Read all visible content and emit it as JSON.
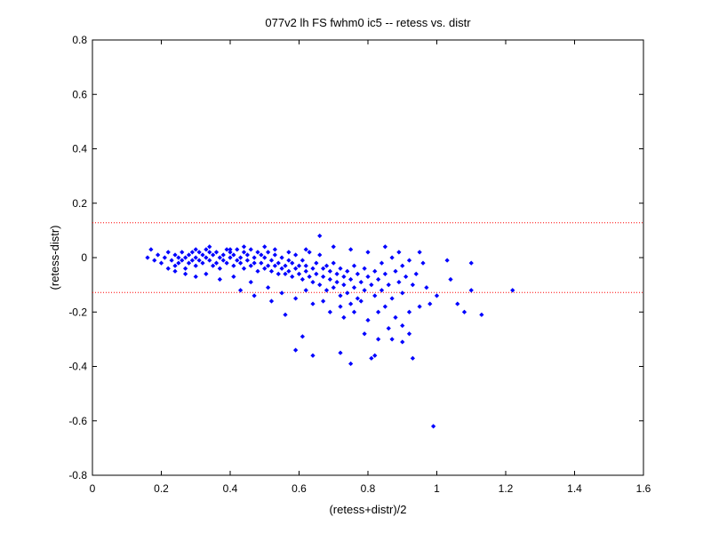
{
  "chart_data": {
    "type": "scatter",
    "title": "077v2 lh FS fwhm0 ic5 -- retess vs. distr",
    "xlabel": "(retess+distr)/2",
    "ylabel": "(retess-distr)",
    "xlim": [
      0,
      1.6
    ],
    "ylim": [
      -0.8,
      0.8
    ],
    "xticks": [
      0,
      0.2,
      0.4,
      0.6,
      0.8,
      1,
      1.2,
      1.4,
      1.6
    ],
    "yticks": [
      -0.8,
      -0.6,
      -0.4,
      -0.2,
      0,
      0.2,
      0.4,
      0.6,
      0.8
    ],
    "xtick_labels": [
      "0",
      "0.2",
      "0.4",
      "0.6",
      "0.8",
      "1",
      "1.2",
      "1.4",
      "1.6"
    ],
    "ytick_labels": [
      "-0.8",
      "-0.6",
      "-0.4",
      "-0.2",
      "0",
      "0.2",
      "0.4",
      "0.6",
      "0.8"
    ],
    "grid": false,
    "reference_lines": [
      {
        "y": 0.128,
        "style": "dotted",
        "color": "#ff0000"
      },
      {
        "y": -0.128,
        "style": "dotted",
        "color": "#ff0000"
      }
    ],
    "marker_color": "#0000ff",
    "series": [
      {
        "points": [
          [
            0.16,
            0.0
          ],
          [
            0.17,
            0.03
          ],
          [
            0.18,
            -0.01
          ],
          [
            0.19,
            0.01
          ],
          [
            0.2,
            -0.02
          ],
          [
            0.21,
            0.0
          ],
          [
            0.22,
            -0.04
          ],
          [
            0.22,
            0.02
          ],
          [
            0.23,
            -0.01
          ],
          [
            0.24,
            0.01
          ],
          [
            0.24,
            -0.03
          ],
          [
            0.25,
            0.0
          ],
          [
            0.25,
            -0.02
          ],
          [
            0.26,
            0.02
          ],
          [
            0.26,
            -0.01
          ],
          [
            0.27,
            0.0
          ],
          [
            0.27,
            -0.04
          ],
          [
            0.28,
            0.01
          ],
          [
            0.28,
            -0.02
          ],
          [
            0.29,
            0.02
          ],
          [
            0.29,
            -0.01
          ],
          [
            0.3,
            0.0
          ],
          [
            0.3,
            -0.03
          ],
          [
            0.31,
            0.02
          ],
          [
            0.31,
            -0.01
          ],
          [
            0.32,
            0.01
          ],
          [
            0.32,
            -0.02
          ],
          [
            0.33,
            0.03
          ],
          [
            0.33,
            0.0
          ],
          [
            0.34,
            -0.01
          ],
          [
            0.34,
            0.02
          ],
          [
            0.35,
            -0.03
          ],
          [
            0.35,
            0.01
          ],
          [
            0.36,
            -0.02
          ],
          [
            0.36,
            0.02
          ],
          [
            0.37,
            0.0
          ],
          [
            0.37,
            -0.04
          ],
          [
            0.38,
            0.01
          ],
          [
            0.38,
            -0.01
          ],
          [
            0.39,
            0.03
          ],
          [
            0.39,
            -0.02
          ],
          [
            0.4,
            0.0
          ],
          [
            0.4,
            0.02
          ],
          [
            0.41,
            -0.03
          ],
          [
            0.41,
            0.01
          ],
          [
            0.42,
            -0.01
          ],
          [
            0.42,
            0.03
          ],
          [
            0.43,
            -0.02
          ],
          [
            0.43,
            0.0
          ],
          [
            0.44,
            -0.04
          ],
          [
            0.44,
            0.02
          ],
          [
            0.45,
            -0.01
          ],
          [
            0.45,
            0.01
          ],
          [
            0.46,
            -0.03
          ],
          [
            0.46,
            0.03
          ],
          [
            0.47,
            -0.02
          ],
          [
            0.47,
            0.0
          ],
          [
            0.48,
            -0.05
          ],
          [
            0.48,
            0.02
          ],
          [
            0.49,
            -0.02
          ],
          [
            0.49,
            0.01
          ],
          [
            0.5,
            -0.04
          ],
          [
            0.5,
            0.0
          ],
          [
            0.51,
            -0.03
          ],
          [
            0.51,
            0.02
          ],
          [
            0.52,
            -0.05
          ],
          [
            0.52,
            -0.01
          ],
          [
            0.53,
            -0.03
          ],
          [
            0.53,
            0.01
          ],
          [
            0.54,
            -0.06
          ],
          [
            0.54,
            -0.02
          ],
          [
            0.55,
            -0.04
          ],
          [
            0.55,
            0.0
          ],
          [
            0.56,
            -0.06
          ],
          [
            0.56,
            -0.03
          ],
          [
            0.57,
            -0.01
          ],
          [
            0.57,
            -0.05
          ],
          [
            0.58,
            -0.07
          ],
          [
            0.58,
            -0.02
          ],
          [
            0.59,
            -0.04
          ],
          [
            0.59,
            0.01
          ],
          [
            0.6,
            -0.06
          ],
          [
            0.6,
            -0.03
          ],
          [
            0.61,
            -0.08
          ],
          [
            0.61,
            -0.01
          ],
          [
            0.62,
            -0.05
          ],
          [
            0.62,
            -0.03
          ],
          [
            0.63,
            -0.07
          ],
          [
            0.63,
            0.02
          ],
          [
            0.64,
            -0.04
          ],
          [
            0.64,
            -0.09
          ],
          [
            0.65,
            -0.02
          ],
          [
            0.65,
            -0.06
          ],
          [
            0.66,
            0.01
          ],
          [
            0.66,
            -0.1
          ],
          [
            0.67,
            -0.04
          ],
          [
            0.67,
            -0.07
          ],
          [
            0.68,
            -0.03
          ],
          [
            0.68,
            -0.12
          ],
          [
            0.69,
            -0.05
          ],
          [
            0.69,
            -0.08
          ],
          [
            0.7,
            -0.02
          ],
          [
            0.7,
            -0.11
          ],
          [
            0.71,
            -0.06
          ],
          [
            0.71,
            -0.09
          ],
          [
            0.72,
            -0.04
          ],
          [
            0.72,
            -0.14
          ],
          [
            0.73,
            -0.07
          ],
          [
            0.73,
            -0.1
          ],
          [
            0.74,
            -0.05
          ],
          [
            0.74,
            -0.13
          ],
          [
            0.75,
            -0.08
          ],
          [
            0.75,
            -0.17
          ],
          [
            0.76,
            -0.03
          ],
          [
            0.76,
            -0.11
          ],
          [
            0.77,
            -0.06
          ],
          [
            0.77,
            -0.15
          ],
          [
            0.78,
            -0.09
          ],
          [
            0.79,
            -0.04
          ],
          [
            0.79,
            -0.12
          ],
          [
            0.8,
            -0.07
          ],
          [
            0.81,
            -0.1
          ],
          [
            0.82,
            -0.05
          ],
          [
            0.82,
            -0.14
          ],
          [
            0.83,
            -0.08
          ],
          [
            0.84,
            -0.02
          ],
          [
            0.84,
            -0.12
          ],
          [
            0.85,
            -0.06
          ],
          [
            0.86,
            -0.1
          ],
          [
            0.87,
            0.0
          ],
          [
            0.87,
            -0.15
          ],
          [
            0.88,
            -0.05
          ],
          [
            0.89,
            -0.09
          ],
          [
            0.9,
            -0.03
          ],
          [
            0.9,
            -0.13
          ],
          [
            0.91,
            -0.07
          ],
          [
            0.92,
            -0.01
          ],
          [
            0.93,
            -0.1
          ],
          [
            0.94,
            -0.06
          ],
          [
            0.96,
            -0.02
          ],
          [
            0.97,
            -0.11
          ],
          [
            1.0,
            -0.14
          ],
          [
            1.03,
            -0.01
          ],
          [
            1.04,
            -0.08
          ],
          [
            1.06,
            -0.17
          ],
          [
            1.08,
            -0.2
          ],
          [
            1.1,
            -0.02
          ],
          [
            1.1,
            -0.12
          ],
          [
            1.13,
            -0.21
          ],
          [
            1.22,
            -0.12
          ],
          [
            0.3,
            0.03
          ],
          [
            0.34,
            0.04
          ],
          [
            0.4,
            0.03
          ],
          [
            0.44,
            0.04
          ],
          [
            0.5,
            0.04
          ],
          [
            0.53,
            0.03
          ],
          [
            0.57,
            0.02
          ],
          [
            0.62,
            0.03
          ],
          [
            0.66,
            0.08
          ],
          [
            0.7,
            0.04
          ],
          [
            0.75,
            0.03
          ],
          [
            0.8,
            0.02
          ],
          [
            0.85,
            0.04
          ],
          [
            0.89,
            0.02
          ],
          [
            0.95,
            0.02
          ],
          [
            0.24,
            -0.05
          ],
          [
            0.27,
            -0.06
          ],
          [
            0.3,
            -0.07
          ],
          [
            0.33,
            -0.06
          ],
          [
            0.37,
            -0.08
          ],
          [
            0.41,
            -0.07
          ],
          [
            0.46,
            -0.09
          ],
          [
            0.51,
            -0.11
          ],
          [
            0.55,
            -0.13
          ],
          [
            0.59,
            -0.15
          ],
          [
            0.62,
            -0.12
          ],
          [
            0.64,
            -0.17
          ],
          [
            0.67,
            -0.16
          ],
          [
            0.69,
            -0.2
          ],
          [
            0.72,
            -0.18
          ],
          [
            0.73,
            -0.22
          ],
          [
            0.76,
            -0.2
          ],
          [
            0.78,
            -0.16
          ],
          [
            0.8,
            -0.23
          ],
          [
            0.83,
            -0.2
          ],
          [
            0.85,
            -0.18
          ],
          [
            0.86,
            -0.26
          ],
          [
            0.88,
            -0.22
          ],
          [
            0.9,
            -0.25
          ],
          [
            0.92,
            -0.2
          ],
          [
            0.95,
            -0.18
          ],
          [
            0.98,
            -0.17
          ],
          [
            0.56,
            -0.21
          ],
          [
            0.52,
            -0.16
          ],
          [
            0.47,
            -0.14
          ],
          [
            0.43,
            -0.12
          ],
          [
            0.61,
            -0.29
          ],
          [
            0.59,
            -0.34
          ],
          [
            0.64,
            -0.36
          ],
          [
            0.72,
            -0.35
          ],
          [
            0.75,
            -0.39
          ],
          [
            0.81,
            -0.37
          ],
          [
            0.82,
            -0.36
          ],
          [
            0.87,
            -0.3
          ],
          [
            0.9,
            -0.31
          ],
          [
            0.92,
            -0.28
          ],
          [
            0.93,
            -0.37
          ],
          [
            0.83,
            -0.3
          ],
          [
            0.79,
            -0.28
          ],
          [
            0.99,
            -0.62
          ]
        ]
      }
    ]
  }
}
